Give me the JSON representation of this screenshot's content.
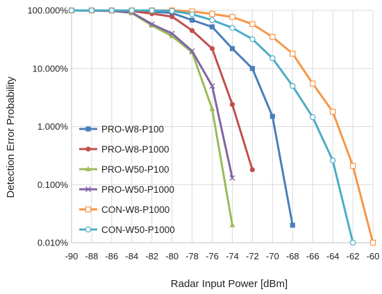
{
  "chart_data": {
    "type": "line",
    "title": "",
    "xlabel": "Radar Input Power [dBm]",
    "ylabel": "Detection Error Probability",
    "y_scale": "log",
    "xlim": [
      -90,
      -60
    ],
    "ylim": [
      0.01,
      100
    ],
    "x_ticks": [
      "-90",
      "-88",
      "-86",
      "-84",
      "-82",
      "-80",
      "-78",
      "-76",
      "-74",
      "-72",
      "-70",
      "-68",
      "-66",
      "-64",
      "-62",
      "-60"
    ],
    "y_ticks": [
      "0.010%",
      "0.100%",
      "1.000%",
      "10.000%",
      "100.000%"
    ],
    "grid": "horizontal and vertical",
    "legend_position": "center-left",
    "series": [
      {
        "name": "PRO-W8-P100",
        "color": "#4a7ebb",
        "marker": "filled-square",
        "x": [
          -90,
          -88,
          -86,
          -84,
          -82,
          -80,
          -78,
          -76,
          -74,
          -72,
          -70,
          -68
        ],
        "y": [
          100,
          100,
          99,
          98,
          95,
          90,
          68,
          52,
          22,
          10,
          1.5,
          0.02
        ]
      },
      {
        "name": "PRO-W8-P1000",
        "color": "#c0504d",
        "marker": "filled-circle",
        "x": [
          -90,
          -88,
          -86,
          -84,
          -82,
          -80,
          -78,
          -76,
          -74,
          -72
        ],
        "y": [
          100,
          100,
          99,
          97,
          88,
          78,
          45,
          22,
          2.4,
          0.18
        ]
      },
      {
        "name": "PRO-W50-P100",
        "color": "#9bbb59",
        "marker": "filled-triangle",
        "x": [
          -90,
          -88,
          -86,
          -84,
          -82,
          -80,
          -78,
          -76,
          -74
        ],
        "y": [
          100,
          99,
          98,
          90,
          55,
          36,
          19,
          2,
          0.02
        ]
      },
      {
        "name": "PRO-W50-P1000",
        "color": "#8064a2",
        "marker": "cross",
        "x": [
          -90,
          -88,
          -86,
          -84,
          -82,
          -80,
          -78,
          -76,
          -74
        ],
        "y": [
          100,
          99,
          98,
          92,
          58,
          40,
          20,
          5,
          0.13
        ]
      },
      {
        "name": "CON-W8-P1000",
        "color": "#f79646",
        "marker": "open-square",
        "x": [
          -90,
          -88,
          -86,
          -84,
          -82,
          -80,
          -78,
          -76,
          -74,
          -72,
          -70,
          -68,
          -66,
          -64,
          -62,
          -60
        ],
        "y": [
          100,
          100,
          100,
          100,
          100,
          100,
          96,
          87,
          77,
          58,
          35,
          18,
          5.5,
          1.8,
          0.21,
          0.01
        ]
      },
      {
        "name": "CON-W50-P1000",
        "color": "#4bacc6",
        "marker": "open-circle",
        "x": [
          -90,
          -88,
          -86,
          -84,
          -82,
          -80,
          -78,
          -76,
          -74,
          -72,
          -70,
          -68,
          -66,
          -64,
          -62
        ],
        "y": [
          100,
          100,
          100,
          100,
          100,
          98,
          86,
          68,
          50,
          32,
          15,
          5,
          1.45,
          0.26,
          0.01
        ]
      }
    ]
  }
}
